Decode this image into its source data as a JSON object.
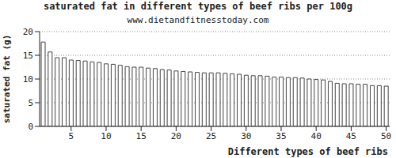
{
  "chart_data": {
    "type": "bar",
    "title": "saturated fat in different types of beef ribs per 100g",
    "subtitle": "www.dietandfitnesstoday.com",
    "x_label": "Different types of beef ribs",
    "y_label": "saturated fat (g)",
    "x": [
      1,
      2,
      3,
      4,
      5,
      6,
      7,
      8,
      9,
      10,
      11,
      12,
      13,
      14,
      15,
      16,
      17,
      18,
      19,
      20,
      21,
      22,
      23,
      24,
      25,
      26,
      27,
      28,
      29,
      30,
      31,
      32,
      33,
      34,
      35,
      36,
      37,
      38,
      39,
      40,
      41,
      42,
      43,
      44,
      45,
      46,
      47,
      48,
      49,
      50
    ],
    "values": [
      17.8,
      15.7,
      14.5,
      14.5,
      14.0,
      13.9,
      13.8,
      13.6,
      13.5,
      13.2,
      13.1,
      12.9,
      12.6,
      12.5,
      12.5,
      12.3,
      12.2,
      12.0,
      11.9,
      11.7,
      11.6,
      11.5,
      11.4,
      11.3,
      11.3,
      11.3,
      11.2,
      11.1,
      11.0,
      10.8,
      10.7,
      10.7,
      10.6,
      10.4,
      10.4,
      10.3,
      10.3,
      10.2,
      10.0,
      9.9,
      9.8,
      9.5,
      9.1,
      9.0,
      9.0,
      8.9,
      8.9,
      8.6,
      8.6,
      8.5
    ],
    "color": "#ffffff",
    "xlim": [
      0.5,
      50.5
    ],
    "xticks": [
      5,
      10,
      15,
      20,
      25,
      30,
      35,
      40,
      45,
      50
    ],
    "ylim": [
      0,
      20
    ],
    "yticks": [
      0,
      5,
      10,
      15,
      20
    ],
    "grid": true
  }
}
